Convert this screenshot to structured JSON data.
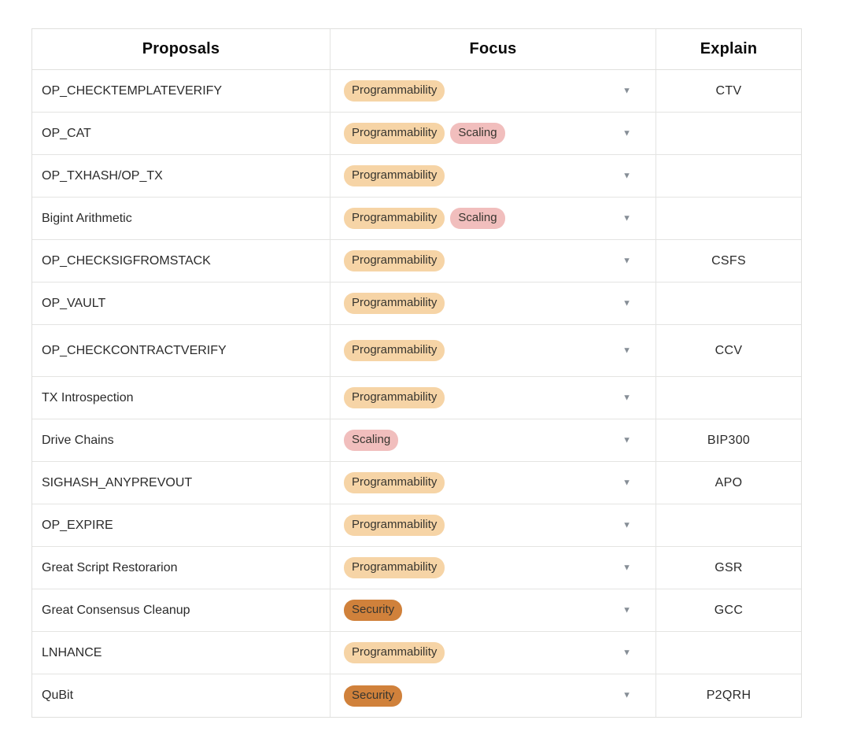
{
  "table": {
    "columns": [
      {
        "key": "proposals",
        "label": "Proposals"
      },
      {
        "key": "focus",
        "label": "Focus"
      },
      {
        "key": "explain",
        "label": "Explain"
      }
    ],
    "tag_colors": {
      "Programmability": "#F6D4A6",
      "Scaling": "#F1BEBD",
      "Security": "#D0813B"
    },
    "dropdown_icon": "▼",
    "rows": [
      {
        "proposal": "OP_CHECKTEMPLATEVERIFY",
        "focus_tags": [
          "Programmability"
        ],
        "explain": "CTV"
      },
      {
        "proposal": "OP_CAT",
        "focus_tags": [
          "Programmability",
          "Scaling"
        ],
        "explain": ""
      },
      {
        "proposal": "OP_TXHASH/OP_TX",
        "focus_tags": [
          "Programmability"
        ],
        "explain": ""
      },
      {
        "proposal": "Bigint Arithmetic",
        "focus_tags": [
          "Programmability",
          "Scaling"
        ],
        "explain": ""
      },
      {
        "proposal": "OP_CHECKSIGFROMSTACK",
        "focus_tags": [
          "Programmability"
        ],
        "explain": "CSFS"
      },
      {
        "proposal": "OP_VAULT",
        "focus_tags": [
          "Programmability"
        ],
        "explain": ""
      },
      {
        "proposal": "OP_CHECKCONTRACTVERIFY",
        "focus_tags": [
          "Programmability"
        ],
        "explain": "CCV"
      },
      {
        "proposal": "TX Introspection",
        "focus_tags": [
          "Programmability"
        ],
        "explain": ""
      },
      {
        "proposal": "Drive Chains",
        "focus_tags": [
          "Scaling"
        ],
        "explain": "BIP300"
      },
      {
        "proposal": "SIGHASH_ANYPREVOUT",
        "focus_tags": [
          "Programmability"
        ],
        "explain": "APO"
      },
      {
        "proposal": "OP_EXPIRE",
        "focus_tags": [
          "Programmability"
        ],
        "explain": ""
      },
      {
        "proposal": "Great Script Restorarion",
        "focus_tags": [
          "Programmability"
        ],
        "explain": "GSR"
      },
      {
        "proposal": "Great Consensus Cleanup",
        "focus_tags": [
          "Security"
        ],
        "explain": "GCC"
      },
      {
        "proposal": "LNHANCE",
        "focus_tags": [
          "Programmability"
        ],
        "explain": ""
      },
      {
        "proposal": "QuBit",
        "focus_tags": [
          "Security"
        ],
        "explain": "P2QRH"
      }
    ]
  }
}
